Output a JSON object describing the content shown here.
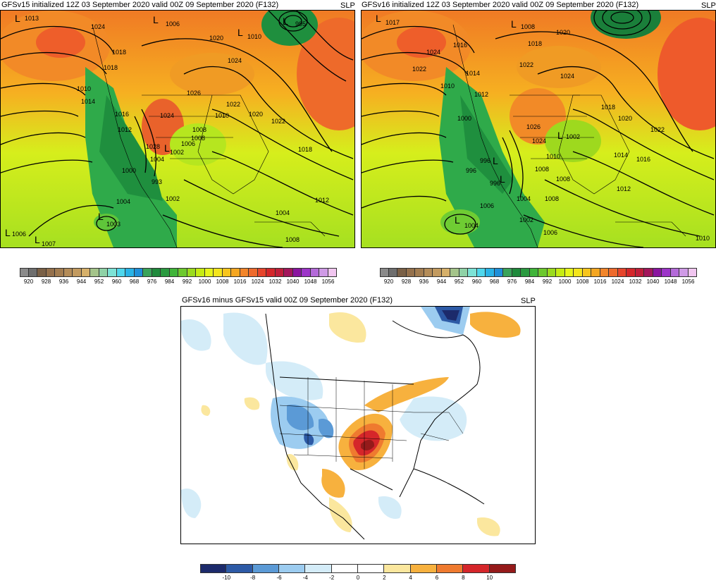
{
  "panel_left": {
    "title": "GFSv15 initialized 12Z 03 September 2020 valid 00Z 09 September 2020 (F132)",
    "variable": "SLP",
    "lows": [
      "L",
      "L",
      "L",
      "L",
      "L",
      "L",
      "L",
      "L"
    ],
    "low_values": [
      "1013",
      "1006",
      "1010",
      "995",
      "1003",
      "1006",
      "1007",
      "1002"
    ],
    "isobar_labels": [
      "1024",
      "1018",
      "1018",
      "1010",
      "1014",
      "1016",
      "1012",
      "1022",
      "1020",
      "1024",
      "1026",
      "1024",
      "1008",
      "1020",
      "1018",
      "1022",
      "1012",
      "1008",
      "1000",
      "1004",
      "993",
      "1002",
      "1004",
      "1004",
      "1006",
      "1028",
      "1010",
      "1008"
    ]
  },
  "panel_right": {
    "title": "GFSv16 initialized 12Z 03 September 2020 valid 00Z 09 September 2020 (F132)",
    "variable": "SLP",
    "lows": [
      "L",
      "L",
      "L",
      "L",
      "L",
      "L"
    ],
    "low_values": [
      "1017",
      "1008",
      "1004",
      "1002",
      "996",
      "996"
    ],
    "isobar_labels": [
      "1024",
      "1016",
      "1022",
      "1014",
      "1010",
      "1012",
      "1020",
      "1018",
      "1022",
      "1024",
      "1026",
      "1024",
      "1018",
      "1020",
      "1022",
      "1014",
      "1016",
      "1010",
      "1008",
      "1006",
      "1004",
      "1002",
      "1008",
      "1010",
      "1006",
      "1000",
      "1008",
      "996",
      "1012"
    ]
  },
  "panel_diff": {
    "title": "GFSv16 minus GFSv15 valid 00Z 09 September 2020 (F132)",
    "variable": "SLP"
  },
  "colorbar_slp": {
    "colors": [
      "#8a8a8a",
      "#6e6e6e",
      "#7a6046",
      "#94704b",
      "#a27c50",
      "#b48c58",
      "#c29a5f",
      "#d6b06a",
      "#a4c48a",
      "#8fd2a6",
      "#7de3d6",
      "#4fd7ec",
      "#29b3e6",
      "#1f8fd9",
      "#3aa35a",
      "#1f8a3c",
      "#2a9a40",
      "#40b53a",
      "#6cc92e",
      "#9adb1d",
      "#c6ec12",
      "#e8f51a",
      "#f4e51c",
      "#f7c51d",
      "#f4a621",
      "#f2852a",
      "#ee6a2c",
      "#e7452b",
      "#d4262a",
      "#c01e3a",
      "#a3165c",
      "#8a14a0",
      "#9c34c8",
      "#b46ad9",
      "#cf9ae6",
      "#f1c6f0"
    ],
    "tick_labels": [
      "920",
      "928",
      "936",
      "944",
      "952",
      "960",
      "968",
      "976",
      "984",
      "992",
      "1000",
      "1008",
      "1016",
      "1024",
      "1032",
      "1040",
      "1048",
      "1056"
    ]
  },
  "colorbar_diff": {
    "colors": [
      "#1c2a6b",
      "#2d5aa6",
      "#5b9ad6",
      "#9cccf0",
      "#d4ecf8",
      "#ffffff",
      "#ffffff",
      "#fbe79e",
      "#f7b13e",
      "#ef7a2f",
      "#d5262a",
      "#951a1a"
    ],
    "tick_labels": [
      "-10",
      "-8",
      "-6",
      "-4",
      "-2",
      "0",
      "2",
      "4",
      "6",
      "8",
      "10"
    ]
  }
}
